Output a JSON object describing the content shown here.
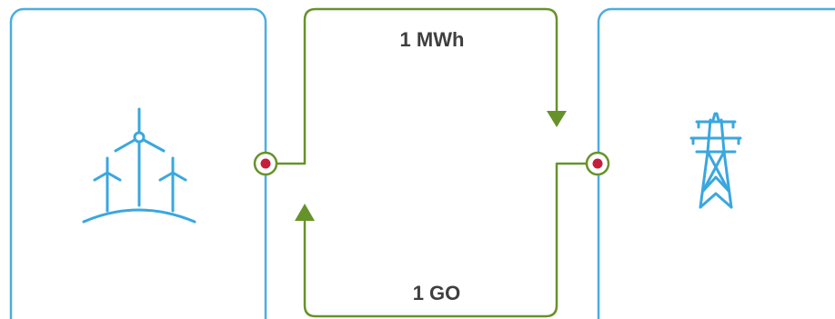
{
  "flows": {
    "energy_label": "1 MWh",
    "certificate_label": "1 GO"
  },
  "nodes": {
    "producer_icon": "wind-turbines-icon",
    "grid_icon": "transmission-tower-icon"
  },
  "colors": {
    "box_stroke": "#4aaee0",
    "icon": "#3aa7df",
    "flow": "#66922a",
    "port_dot": "#c31f3b",
    "label_text": "#3f3f3f"
  }
}
